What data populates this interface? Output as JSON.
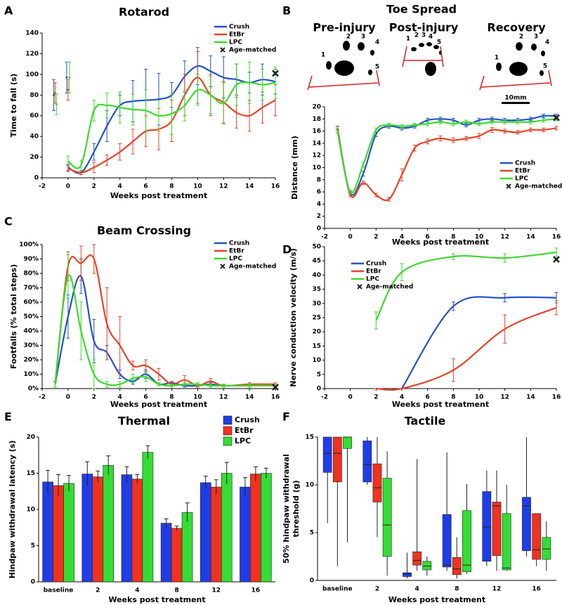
{
  "chart_data": [
    {
      "panel": "A",
      "type": "line",
      "title": "Rotarod",
      "x_label": "Weeks post treatment",
      "y_label": "Time to fall (s)",
      "xlim": [
        -2,
        16
      ],
      "xticks": [
        -2,
        0,
        2,
        4,
        6,
        8,
        10,
        12,
        14,
        16
      ],
      "ylim": [
        0,
        140
      ],
      "yticks": [
        0,
        20,
        40,
        60,
        80,
        100,
        120,
        140
      ],
      "x": [
        0,
        1,
        2,
        3,
        4,
        5,
        6,
        7,
        8,
        9,
        10,
        11,
        12,
        13,
        14,
        15,
        16
      ],
      "series": [
        {
          "name": "Crush",
          "color": "#2452c8",
          "values": [
            10,
            5,
            25,
            50,
            70,
            74,
            75,
            76,
            80,
            98,
            108,
            103,
            97,
            95,
            92,
            95,
            93
          ],
          "errors": [
            3,
            2,
            8,
            15,
            10,
            20,
            30,
            25,
            12,
            15,
            18,
            15,
            20,
            15,
            10,
            15,
            12
          ],
          "pre_x": [
            -1,
            0
          ],
          "pre_values": [
            80,
            97
          ],
          "pre_errors": [
            15,
            15
          ]
        },
        {
          "name": "EtBr",
          "color": "#e2452b",
          "values": [
            9,
            5,
            10,
            17,
            25,
            35,
            45,
            47,
            55,
            80,
            97,
            80,
            73,
            63,
            60,
            68,
            75
          ],
          "errors": [
            3,
            2,
            5,
            5,
            8,
            12,
            15,
            20,
            20,
            20,
            25,
            20,
            20,
            15,
            15,
            15,
            15
          ],
          "pre_x": [
            -1,
            0
          ],
          "pre_values": [
            82,
            85
          ],
          "pre_errors": [
            10,
            10
          ]
        },
        {
          "name": "LPC",
          "color": "#3ed92c",
          "values": [
            16,
            12,
            65,
            70,
            68,
            66,
            65,
            60,
            62,
            70,
            85,
            80,
            72,
            90,
            92,
            90,
            92
          ],
          "errors": [
            5,
            5,
            10,
            12,
            15,
            15,
            20,
            15,
            20,
            15,
            15,
            18,
            20,
            20,
            20,
            15,
            15
          ],
          "pre_x": [
            -1,
            0
          ],
          "pre_values": [
            71,
            97
          ],
          "pre_errors": [
            10,
            15
          ]
        }
      ],
      "age_matched": {
        "name": "Age-matched",
        "x": 16,
        "value": 101
      }
    },
    {
      "panel": "B",
      "type": "line",
      "title": "Toe Spread",
      "x_label": "Weeks post treatment",
      "y_label": "Distance (mm)",
      "images": [
        {
          "label": "Pre-injury",
          "digits": [
            "1",
            "2",
            "3",
            "4",
            "5"
          ]
        },
        {
          "label": "Post-injury",
          "digits": [
            "1",
            "2",
            "3",
            "4",
            "5"
          ]
        },
        {
          "label": "Recovery",
          "digits": [
            "1",
            "2",
            "3",
            "4",
            "5"
          ]
        }
      ],
      "scale_bar": "10mm",
      "xlim": [
        -2,
        16
      ],
      "xticks": [
        -2,
        0,
        2,
        4,
        6,
        8,
        10,
        12,
        14,
        16
      ],
      "ylim": [
        0,
        20
      ],
      "yticks": [
        0,
        2,
        4,
        6,
        8,
        10,
        12,
        14,
        16,
        18,
        20
      ],
      "x": [
        -1,
        0,
        1,
        2,
        3,
        4,
        5,
        6,
        7,
        8,
        9,
        10,
        11,
        12,
        13,
        14,
        15,
        16
      ],
      "series": [
        {
          "name": "Crush",
          "color": "#2452c8",
          "values": [
            16.5,
            5.8,
            9,
            15.5,
            16.8,
            16.5,
            16.8,
            17.8,
            18,
            17.8,
            17,
            17.8,
            18,
            17.8,
            17.8,
            18,
            18.5,
            18.5
          ],
          "errors": [
            0.3,
            0.3,
            0.4,
            0.4,
            0.3,
            0.3,
            0.3,
            0.3,
            0.3,
            0.3,
            0.3,
            0.3,
            0.3,
            0.3,
            0.3,
            0.3,
            0.3,
            0.3
          ]
        },
        {
          "name": "EtBr",
          "color": "#e2452b",
          "values": [
            16.5,
            5.5,
            7.5,
            5.5,
            4.8,
            8.8,
            13.2,
            14.3,
            14.8,
            14.5,
            14.8,
            15.2,
            16.2,
            16,
            15.8,
            16.2,
            16.2,
            16.5
          ],
          "errors": [
            0.3,
            0.3,
            0.3,
            0.3,
            0.3,
            1,
            0.5,
            0.4,
            0.4,
            0.4,
            0.3,
            0.4,
            0.4,
            0.3,
            0.3,
            0.3,
            0.3,
            0.3
          ]
        },
        {
          "name": "LPC",
          "color": "#3ed92c",
          "values": [
            16,
            6,
            10.5,
            16.2,
            17,
            16.8,
            17,
            17.2,
            17.5,
            17.2,
            17.5,
            17.2,
            17.5,
            17.5,
            17.5,
            17.5,
            17.8,
            18
          ],
          "errors": [
            0.3,
            0.3,
            0.4,
            0.3,
            0.3,
            0.3,
            0.3,
            0.3,
            0.3,
            0.3,
            0.3,
            0.3,
            0.3,
            0.3,
            0.3,
            0.3,
            0.3,
            0.3
          ]
        }
      ],
      "age_matched": {
        "name": "Age-matched",
        "x": 16,
        "value": 18.2
      }
    },
    {
      "panel": "C",
      "type": "line",
      "title": "Beam Crossing",
      "x_label": "Weeks post treatment",
      "y_label": "Footfalls (% total steps)",
      "xlim": [
        -2,
        16
      ],
      "xticks": [
        -2,
        0,
        2,
        4,
        6,
        8,
        10,
        12,
        14,
        16
      ],
      "ylim": [
        0,
        100
      ],
      "yticks": [
        {
          "value": 0,
          "label": "0%"
        },
        {
          "value": 10,
          "label": "10%"
        },
        {
          "value": 20,
          "label": "20%"
        },
        {
          "value": 30,
          "label": "30%"
        },
        {
          "value": 40,
          "label": "40%"
        },
        {
          "value": 50,
          "label": "50%"
        },
        {
          "value": 60,
          "label": "60%"
        },
        {
          "value": 70,
          "label": "70%"
        },
        {
          "value": 80,
          "label": "80%"
        },
        {
          "value": 90,
          "label": "90%"
        },
        {
          "value": 100,
          "label": "100%"
        }
      ],
      "x": [
        -1,
        0,
        1,
        2,
        3,
        4,
        5,
        6,
        7,
        8,
        9,
        10,
        11,
        12,
        14,
        16
      ],
      "series": [
        {
          "name": "Crush",
          "color": "#2452c8",
          "values": [
            3,
            50,
            78,
            33,
            25,
            10,
            5,
            10,
            3,
            4,
            2,
            2,
            3,
            2,
            2,
            2
          ],
          "errors": [
            2,
            15,
            12,
            15,
            5,
            3,
            2,
            3,
            1,
            1,
            1,
            1,
            1,
            1,
            1,
            1
          ]
        },
        {
          "name": "EtBr",
          "color": "#e2452b",
          "values": [
            3,
            85,
            87,
            90,
            45,
            30,
            16,
            16,
            10,
            3,
            6,
            2,
            5,
            2,
            3,
            3
          ],
          "errors": [
            2,
            10,
            12,
            10,
            25,
            20,
            3,
            4,
            4,
            2,
            3,
            1,
            2,
            1,
            1,
            1
          ]
        },
        {
          "name": "LPC",
          "color": "#3ed92c",
          "values": [
            3,
            78,
            40,
            10,
            3,
            3,
            7,
            8,
            3,
            2,
            3,
            3,
            2,
            2,
            2,
            2
          ],
          "errors": [
            2,
            15,
            20,
            10,
            2,
            2,
            3,
            3,
            1,
            1,
            1,
            1,
            1,
            1,
            1,
            1
          ]
        }
      ],
      "age_matched": {
        "name": "Age-matched",
        "x": 16,
        "value": 1
      }
    },
    {
      "panel": "D",
      "type": "line",
      "x_label": "Weeks post treatment",
      "y_label": "Nerve conduction velocity (m/s)",
      "xlim": [
        -2,
        16
      ],
      "xticks": [
        -2,
        0,
        2,
        4,
        6,
        8,
        10,
        12,
        14,
        16
      ],
      "ylim": [
        0,
        50
      ],
      "yticks": [
        0,
        5,
        10,
        15,
        20,
        25,
        30,
        35,
        40,
        45,
        50
      ],
      "x": [
        2,
        4,
        8,
        12,
        16
      ],
      "series": [
        {
          "name": "Crush",
          "color": "#2452c8",
          "values": [
            null,
            0,
            29,
            32,
            32
          ],
          "errors": [
            null,
            0,
            1.5,
            1.5,
            1.8
          ]
        },
        {
          "name": "EtBr",
          "color": "#e2452b",
          "values": [
            0,
            0,
            6.5,
            21,
            28.5
          ],
          "errors": [
            0,
            0,
            4,
            5,
            2.5
          ]
        },
        {
          "name": "LPC",
          "color": "#3ed92c",
          "values": [
            24,
            41,
            46.5,
            46,
            48
          ],
          "errors": [
            3,
            3,
            1,
            1.5,
            1.5
          ]
        }
      ],
      "age_matched": {
        "name": "Age-matched",
        "x": 16,
        "value": 45.5
      }
    },
    {
      "panel": "E",
      "type": "bar",
      "title": "Thermal",
      "x_label": "Weeks post treatment",
      "y_label": "Hindpaw withdrawal latency (s)",
      "categories": [
        "baseline",
        "2",
        "4",
        "8",
        "12",
        "16"
      ],
      "ylim": [
        0,
        20
      ],
      "yticks": [
        0,
        5,
        10,
        15,
        20
      ],
      "series": [
        {
          "name": "Crush",
          "color": "#1f3de6",
          "values": [
            13.8,
            14.9,
            14.8,
            8.1,
            13.7,
            13.1
          ],
          "errors": [
            1.6,
            1.7,
            1.1,
            0.6,
            0.9,
            1.3
          ]
        },
        {
          "name": "EtBr",
          "color": "#f0321f",
          "values": [
            13.3,
            14.5,
            14.2,
            7.4,
            13.1,
            14.9
          ],
          "errors": [
            1.5,
            0.8,
            0.6,
            0.3,
            1.0,
            1.0
          ]
        },
        {
          "name": "LPC",
          "color": "#33dd33",
          "values": [
            13.6,
            16.1,
            17.9,
            9.6,
            15.0,
            15.0
          ],
          "errors": [
            1.1,
            1.3,
            0.9,
            1.3,
            1.5,
            0.7
          ]
        }
      ]
    },
    {
      "panel": "F",
      "type": "box",
      "title": "Tactile",
      "x_label": "Weeks post treatment",
      "y_label": [
        "50% hindpaw withdrawal",
        "threshold (g)"
      ],
      "categories": [
        "baseline",
        "2",
        "4",
        "8",
        "12",
        "16"
      ],
      "ylim": [
        0,
        15
      ],
      "yticks": [
        0,
        5,
        10,
        15
      ],
      "series": [
        {
          "color": "#1f3de6",
          "values": [
            [
              6,
              11.3,
              13.3,
              15,
              15
            ],
            [
              10,
              10.3,
              12.1,
              14.6,
              15
            ],
            [
              0.2,
              0.4,
              0.7,
              0.8,
              2.9
            ],
            [
              1,
              1.4,
              1.6,
              6.9,
              13.4
            ],
            [
              1.5,
              2,
              5.6,
              9.3,
              11.5
            ],
            [
              2.5,
              3.1,
              7.8,
              8.7,
              15
            ]
          ]
        },
        {
          "color": "#f0321f",
          "values": [
            [
              1.5,
              10.3,
              13.3,
              15,
              15
            ],
            [
              4.5,
              8.2,
              9.7,
              12.2,
              15
            ],
            [
              1,
              1.6,
              2.1,
              3,
              12.7
            ],
            [
              0.2,
              0.6,
              1.2,
              2.4,
              4.5
            ],
            [
              1,
              2.6,
              7.8,
              8.2,
              11.5
            ],
            [
              1.5,
              2.2,
              3.2,
              7,
              7
            ]
          ]
        },
        {
          "color": "#33dd33",
          "values": [
            [
              4,
              13.8,
              15,
              15,
              15
            ],
            [
              0.5,
              2.5,
              5.8,
              10.7,
              13.5
            ],
            [
              0.5,
              1.1,
              1.5,
              2,
              2.5
            ],
            [
              0.7,
              0.9,
              1.6,
              7.3,
              10.1
            ],
            [
              1,
              1.1,
              1.3,
              7,
              10
            ],
            [
              1,
              2.2,
              3.3,
              4.5,
              6.2
            ]
          ]
        }
      ]
    }
  ]
}
